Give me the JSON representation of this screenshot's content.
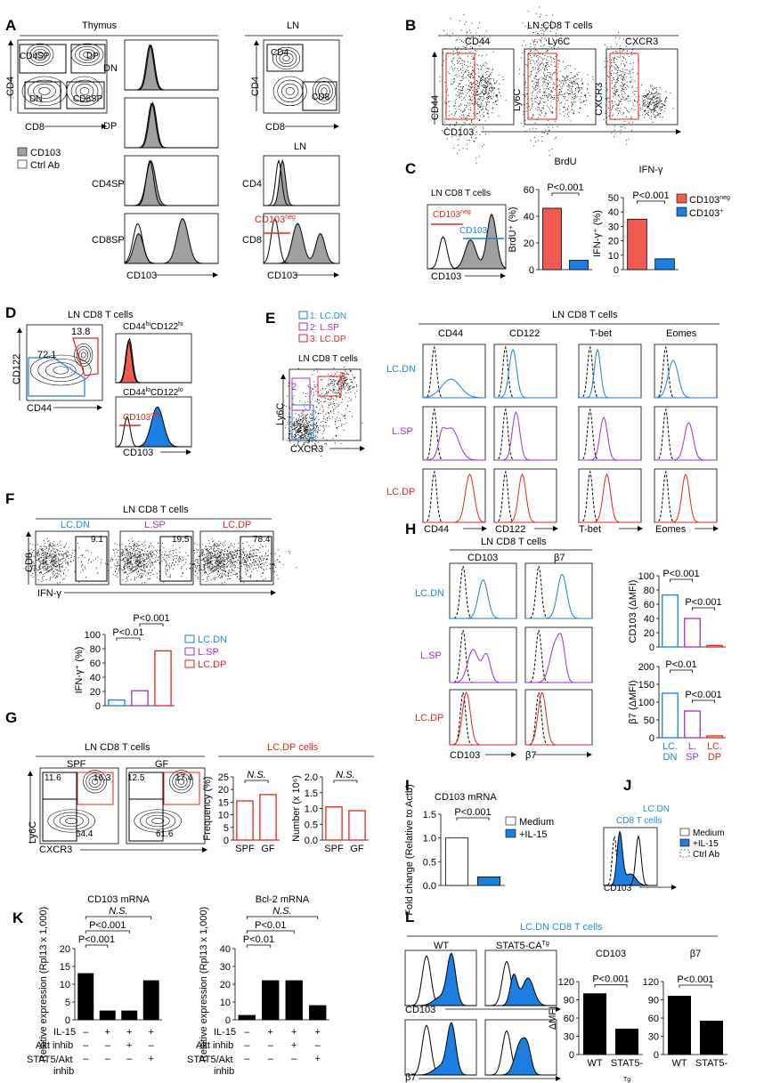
{
  "colors": {
    "red": "#f05a50",
    "blue": "#1a7fe0",
    "purple": "#9b30d9",
    "gray": "#a0a0a0",
    "black": "#000000"
  },
  "panels": {
    "A": {
      "label": "A",
      "thymus": "Thymus",
      "ln": "LN",
      "ln2": "LN",
      "cd4sp": "CD4SP",
      "dp": "DP",
      "dn": "DN",
      "cd8sp": "CD8SP",
      "cd4": "CD4",
      "cd8": "CD8",
      "y_axis": "CD4",
      "x_axis": "CD8",
      "legend": [
        "CD103",
        "Ctrl Ab"
      ],
      "rows": [
        "DN",
        "DP",
        "CD4SP",
        "CD8SP"
      ],
      "ln_rows": [
        "CD4",
        "CD8"
      ],
      "cd103neg": "CD103",
      "neg": "neg",
      "hist_axis": "CD103"
    },
    "B": {
      "label": "B",
      "header": "LN CD8 T cells",
      "titles": [
        "CD44",
        "Ly6C",
        "CXCR3"
      ],
      "y_axes": [
        "CD44",
        "Ly6C",
        "CXCR3"
      ],
      "x_axis": "CD103"
    },
    "C": {
      "label": "C",
      "header": "LN CD8 T cells",
      "cd103": "CD103",
      "neg": "neg",
      "pos": "+",
      "x_axis": "CD103",
      "legend": [
        "CD103",
        "CD103"
      ]
    },
    "D": {
      "label": "D",
      "header": "LN CD8 T cells",
      "n1": "72.1",
      "n2": "13.8",
      "y_axis": "CD122",
      "x_axis": "CD44",
      "h1": "CD44",
      "h1s": "hi",
      "h1b": "CD122",
      "h2": "CD44",
      "h2s": "lo",
      "h2b": "CD122",
      "cd103": "CD103",
      "neg": "neg",
      "hist_axis": "CD103"
    },
    "E": {
      "label": "E",
      "legend": [
        "1: LC.DN",
        "2: L.SP",
        "3: LC.DP"
      ],
      "header": "LN CD8 T cells",
      "gates": [
        "1",
        "2",
        "3"
      ],
      "y_axis": "Ly6C",
      "x_axis": "CXCR3",
      "grid_header": "LN CD8 T cells",
      "columns": [
        "CD44",
        "CD122",
        "T-bet",
        "Eomes"
      ],
      "rows": [
        "LC.DN",
        "L.SP",
        "LC.DP"
      ]
    },
    "F": {
      "label": "F",
      "header": "LN CD8 T cells",
      "titles": [
        "LC.DN",
        "L.SP",
        "LC.DP"
      ],
      "values": [
        "9.1",
        "19.5",
        "78.4"
      ],
      "y_axis": "CD8",
      "x_axis": "IFN-γ",
      "legend": [
        "LC.DN",
        "L.SP",
        "LC.DP"
      ]
    },
    "G": {
      "label": "G",
      "header": "LN CD8 T cells",
      "titles": [
        "SPF",
        "GF"
      ],
      "spf": [
        "11.6",
        "16.3",
        "64.4"
      ],
      "gf": [
        "12.5",
        "17.4",
        "61.6"
      ],
      "y_axis": "Ly6C",
      "x_axis": "CXCR3",
      "bar_header": "LC.DP cells"
    },
    "H": {
      "label": "H",
      "header": "LN CD8 T cells",
      "columns": [
        "CD103",
        "β7"
      ],
      "rows": [
        "LC.DN",
        "L.SP",
        "LC.DP"
      ],
      "x_axes": [
        "CD103",
        "β7"
      ]
    },
    "I": {
      "label": "I",
      "title": "CD103 mRNA",
      "legend": [
        "Medium",
        "+IL-15"
      ]
    },
    "J": {
      "label": "J",
      "title1": "LC.DN",
      "title2": "CD8 T cells",
      "x_axis": "CD103",
      "legend": [
        "Medium",
        "+IL-15",
        "Ctrl Ab"
      ]
    },
    "K": {
      "label": "K",
      "row_labels": [
        "IL-15",
        "Akt inhib",
        "STAT5/Akt",
        "inhib"
      ],
      "signs": [
        [
          "–",
          "+",
          "+",
          "+"
        ],
        [
          "–",
          "–",
          "+",
          "–"
        ],
        [
          "–",
          "–",
          "–",
          "+"
        ]
      ]
    },
    "L": {
      "label": "L",
      "header": "LC.DN CD8 T cells",
      "titles": [
        "WT",
        "STAT5-CA"
      ],
      "tg": "Tg",
      "x_axes": [
        "CD103",
        "β7"
      ]
    }
  },
  "chart_data": [
    {
      "id": "C-brdu",
      "type": "bar",
      "title": "BrdU",
      "ylabel": "BrdU⁺ (%)",
      "categories": [
        "CD103neg",
        "CD103+"
      ],
      "cat_labels": [
        "",
        ""
      ],
      "values": [
        46,
        7
      ],
      "ylim": [
        0,
        60
      ],
      "ticks": [
        0,
        20,
        40,
        60
      ],
      "style": "solid",
      "colors": [
        "#f05a50",
        "#1a7fe0"
      ],
      "annotations": [
        {
          "text": "P<0.001",
          "between": [
            0,
            1
          ]
        }
      ]
    },
    {
      "id": "C-ifng",
      "type": "bar",
      "title": "IFN-γ",
      "ylabel": "IFN-γ⁺ (%)",
      "categories": [
        "CD103neg",
        "CD103+"
      ],
      "cat_labels": [
        "",
        ""
      ],
      "values": [
        35,
        7.5
      ],
      "ylim": [
        0,
        50
      ],
      "ticks": [
        0,
        10,
        20,
        30,
        40,
        50
      ],
      "style": "solid",
      "colors": [
        "#f05a50",
        "#1a7fe0"
      ],
      "annotations": [
        {
          "text": "P<0.001",
          "between": [
            0,
            1
          ]
        }
      ]
    },
    {
      "id": "F-ifng",
      "type": "bar",
      "title": "",
      "ylabel": "IFN-γ⁺ (%)",
      "categories": [
        "LC.DN",
        "L.SP",
        "LC.DP"
      ],
      "cat_labels": [
        "",
        "",
        ""
      ],
      "values": [
        8,
        21,
        77
      ],
      "ylim": [
        0,
        100
      ],
      "ticks": [
        0,
        20,
        40,
        60,
        80,
        100
      ],
      "style": "outline",
      "colors": [
        "#1a7fe0",
        "#9b30d9",
        "#e8231c"
      ],
      "annotations": [
        {
          "text": "P<0.01",
          "between": [
            0,
            1
          ]
        },
        {
          "text": "P<0.001",
          "between": [
            1,
            2
          ]
        }
      ]
    },
    {
      "id": "G-freq",
      "type": "bar",
      "title": "",
      "ylabel": "Frequency (%)",
      "categories": [
        "SPF",
        "GF"
      ],
      "cat_labels": [
        "SPF",
        "GF"
      ],
      "values": [
        15.5,
        18
      ],
      "ylim": [
        0,
        25
      ],
      "ticks": [
        0,
        5,
        10,
        15,
        20,
        25
      ],
      "style": "outline",
      "colors": [
        "#e8231c",
        "#e8231c"
      ],
      "annotations": [
        {
          "text": "N.S.",
          "between": [
            0,
            1
          ]
        }
      ]
    },
    {
      "id": "G-number",
      "type": "bar",
      "title": "",
      "ylabel": "Number (x 10⁶)",
      "categories": [
        "SPF",
        "GF"
      ],
      "cat_labels": [
        "SPF",
        "GF"
      ],
      "values": [
        1.05,
        0.93
      ],
      "ylim": [
        0,
        2.0
      ],
      "ticks": [
        0.0,
        0.5,
        1.0,
        1.5,
        2.0
      ],
      "tick_fmt": 1,
      "style": "outline",
      "colors": [
        "#e8231c",
        "#e8231c"
      ],
      "annotations": [
        {
          "text": "N.S.",
          "between": [
            0,
            1
          ]
        }
      ]
    },
    {
      "id": "H-cd103",
      "type": "bar",
      "title": "",
      "ylabel": "CD103 (ΔMFI)",
      "categories": [
        "LC.DN",
        "L.SP",
        "LC.DP"
      ],
      "cat_labels": [
        "",
        "",
        ""
      ],
      "values": [
        73,
        40,
        2
      ],
      "ylim": [
        0,
        100
      ],
      "ticks": [
        0,
        20,
        40,
        60,
        80,
        100
      ],
      "style": "outline",
      "colors": [
        "#1a7fe0",
        "#9b30d9",
        "#e8231c"
      ],
      "annotations": [
        {
          "text": "P<0.001",
          "between": [
            0,
            1
          ]
        },
        {
          "text": "P<0.001",
          "between": [
            1,
            2
          ]
        }
      ]
    },
    {
      "id": "H-b7",
      "type": "bar",
      "title": "",
      "ylabel": "β7 (ΔMFI)",
      "categories": [
        "LC.DN",
        "L.SP",
        "LC.DP"
      ],
      "cat_labels": [
        "LC. DN",
        "L. SP",
        "LC. DP"
      ],
      "values": [
        125,
        75,
        5
      ],
      "ylim": [
        0,
        200
      ],
      "ticks": [
        0,
        50,
        100,
        150,
        200
      ],
      "style": "outline",
      "colors": [
        "#1a7fe0",
        "#9b30d9",
        "#e8231c"
      ],
      "annotations": [
        {
          "text": "P<0.01",
          "between": [
            0,
            1
          ]
        },
        {
          "text": "P<0.001",
          "between": [
            1,
            2
          ]
        }
      ]
    },
    {
      "id": "I-fold",
      "type": "bar",
      "title": "",
      "ylabel": "Fold change (Relative to Actb)",
      "categories": [
        "Medium",
        "+IL-15"
      ],
      "cat_labels": [
        "",
        ""
      ],
      "values": [
        1.0,
        0.18
      ],
      "ylim": [
        0,
        1.5
      ],
      "ticks": [
        0.0,
        0.5,
        1.0,
        1.5
      ],
      "tick_fmt": 1,
      "style": "mixed",
      "colors": [
        "#ffffff",
        "#1a7fe0"
      ],
      "annotations": [
        {
          "text": "P<0.001",
          "between": [
            0,
            1
          ]
        }
      ]
    },
    {
      "id": "K-cd103",
      "type": "bar",
      "title": "CD103 mRNA",
      "ylabel": "Relative expression (Rpl13 x 1,000)",
      "categories": [
        "1",
        "2",
        "3",
        "4"
      ],
      "cat_labels": [
        "",
        "",
        "",
        ""
      ],
      "values": [
        13,
        2.5,
        2.5,
        11
      ],
      "ylim": [
        0,
        20
      ],
      "ticks": [
        0,
        5,
        10,
        15,
        20
      ],
      "style": "solid",
      "colors": [
        "#000",
        "#000",
        "#000",
        "#000"
      ],
      "annotations": [
        {
          "text": "P<0.001",
          "between": [
            0,
            1
          ]
        },
        {
          "text": "P<0.001",
          "between": [
            0,
            2
          ]
        },
        {
          "text": "N.S.",
          "between": [
            0,
            3
          ]
        }
      ]
    },
    {
      "id": "K-bcl2",
      "type": "bar",
      "title": "Bcl-2 mRNA",
      "ylabel": "Relative expression (Rpl13 x 1,000)",
      "categories": [
        "1",
        "2",
        "3",
        "4"
      ],
      "cat_labels": [
        "",
        "",
        "",
        ""
      ],
      "values": [
        2.5,
        22,
        22,
        8
      ],
      "ylim": [
        0,
        40
      ],
      "ticks": [
        0,
        10,
        20,
        30,
        40
      ],
      "style": "solid",
      "colors": [
        "#000",
        "#000",
        "#000",
        "#000"
      ],
      "annotations": [
        {
          "text": "P<0.01",
          "between": [
            0,
            1
          ]
        },
        {
          "text": "P<0.01",
          "between": [
            0,
            2
          ]
        },
        {
          "text": "N.S.",
          "between": [
            0,
            3
          ]
        }
      ]
    },
    {
      "id": "L-cd103",
      "type": "bar",
      "title": "CD103",
      "ylabel": "ΔMFI",
      "categories": [
        "WT",
        "STAT5-CATg"
      ],
      "cat_labels": [
        "WT",
        "STAT5-"
      ],
      "values": [
        100,
        42
      ],
      "ylim": [
        0,
        120
      ],
      "ticks": [
        0,
        30,
        60,
        90,
        120
      ],
      "style": "solid",
      "colors": [
        "#000",
        "#000"
      ],
      "annotations": [
        {
          "text": "P<0.001",
          "between": [
            0,
            1
          ]
        }
      ]
    },
    {
      "id": "L-b7",
      "type": "bar",
      "title": "β7",
      "ylabel": "",
      "categories": [
        "WT",
        "STAT5-CATg"
      ],
      "cat_labels": [
        "WT",
        "STAT5-"
      ],
      "values": [
        96,
        55
      ],
      "ylim": [
        0,
        120
      ],
      "ticks": [
        0,
        30,
        60,
        90,
        120
      ],
      "style": "solid",
      "colors": [
        "#000",
        "#000"
      ],
      "annotations": [
        {
          "text": "P<0.001",
          "between": [
            0,
            1
          ]
        }
      ]
    }
  ]
}
